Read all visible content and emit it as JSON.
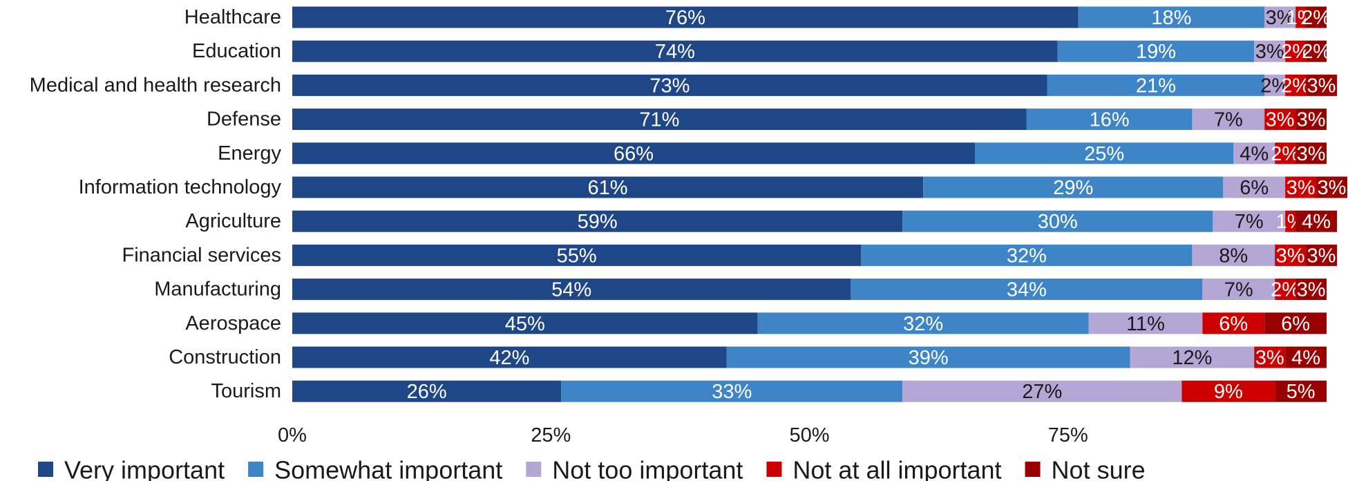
{
  "chart_data": {
    "type": "bar",
    "orientation": "horizontal",
    "stacked": true,
    "categories": [
      "Healthcare",
      "Education",
      "Medical and health research",
      "Defense",
      "Energy",
      "Information technology",
      "Agriculture",
      "Financial services",
      "Manufacturing",
      "Aerospace",
      "Construction",
      "Tourism"
    ],
    "series": [
      {
        "name": "Very important",
        "color": "#1f4788",
        "label_color": "#ffffff",
        "values": [
          76,
          74,
          73,
          71,
          66,
          61,
          59,
          55,
          54,
          45,
          42,
          26
        ]
      },
      {
        "name": "Somewhat important",
        "color": "#3d85c6",
        "label_color": "#ffffff",
        "values": [
          18,
          19,
          21,
          16,
          25,
          29,
          30,
          32,
          34,
          32,
          39,
          33
        ]
      },
      {
        "name": "Not too important",
        "color": "#b4a7d6",
        "label_color": "#1a1a1a",
        "values": [
          3,
          3,
          2,
          7,
          4,
          6,
          7,
          8,
          7,
          11,
          12,
          27
        ]
      },
      {
        "name": "Not at all important",
        "color": "#cc0000",
        "label_color": "#ffffff",
        "values": [
          1,
          2,
          2,
          3,
          2,
          3,
          1,
          3,
          2,
          6,
          3,
          9
        ]
      },
      {
        "name": "Not sure",
        "color": "#990000",
        "label_color": "#ffffff",
        "values": [
          2,
          2,
          3,
          3,
          3,
          3,
          4,
          3,
          3,
          6,
          4,
          5
        ]
      }
    ],
    "value_suffix": "%",
    "xlim": [
      0,
      100
    ],
    "x_ticks": [
      0,
      25,
      50,
      75
    ],
    "x_tick_labels": [
      "0%",
      "25%",
      "50%",
      "75%"
    ],
    "grid": false,
    "legend_position": "bottom"
  }
}
